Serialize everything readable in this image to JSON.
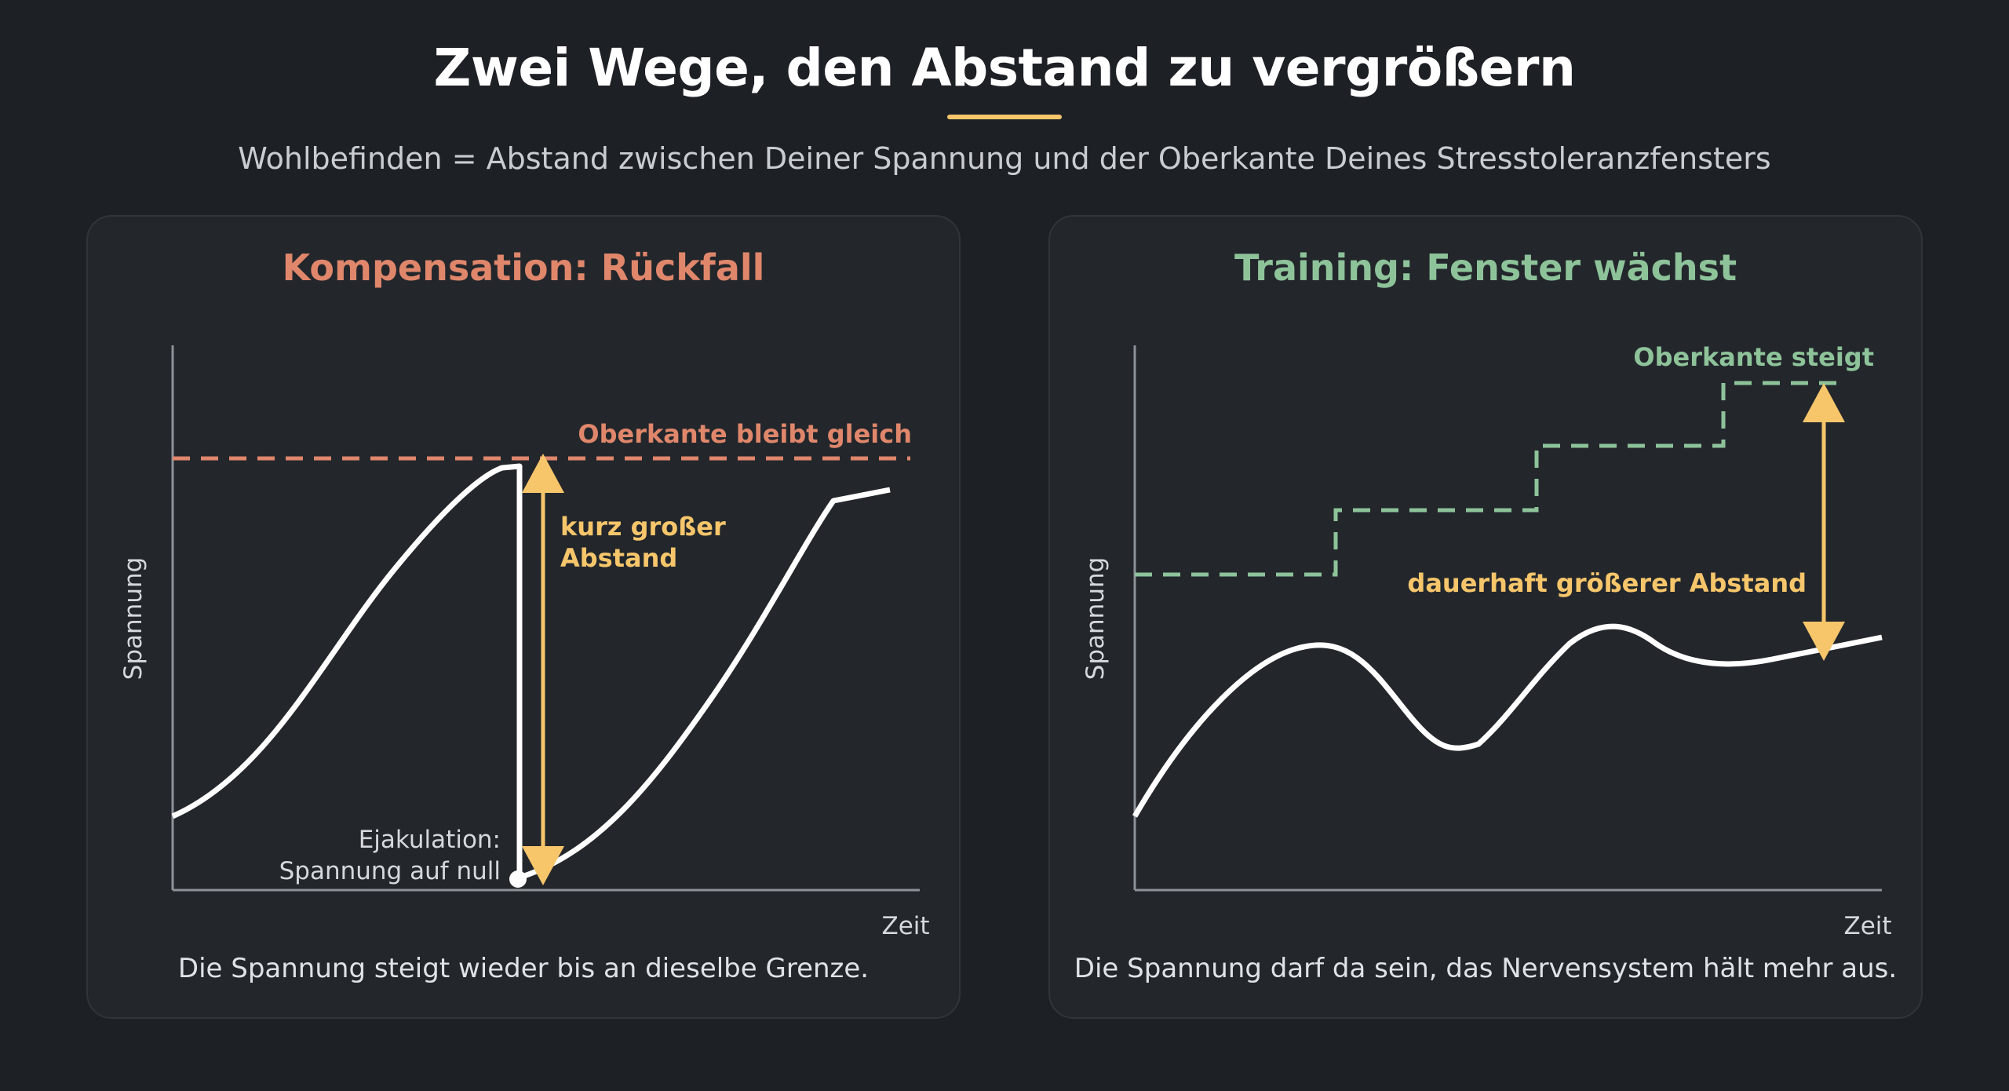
{
  "title": "Zwei Wege, den Abstand zu vergrößern",
  "subtitle": "Wohlbefinden = Abstand zwischen Deiner Spannung und der Oberkante Deines Stresstoleranzfensters",
  "colors": {
    "background": "#1d2025",
    "panel": "#23272c",
    "accent_yellow": "#f7c66b",
    "left_accent": "#e0876b",
    "right_accent": "#8ec39a",
    "curve": "#ffffff"
  },
  "left_panel": {
    "title": "Kompensation: Rückfall",
    "y_axis_label": "Spannung",
    "x_axis_label": "Zeit",
    "limit_label": "Oberkante bleibt gleich",
    "gap_label_line1": "kurz großer",
    "gap_label_line2": "Abstand",
    "event_label_line1": "Ejakulation:",
    "event_label_line2": "Spannung auf null",
    "caption": "Die Spannung steigt wieder bis an dieselbe Grenze."
  },
  "right_panel": {
    "title": "Training: Fenster wächst",
    "y_axis_label": "Spannung",
    "x_axis_label": "Zeit",
    "limit_label": "Oberkante steigt",
    "gap_label": "dauerhaft größerer Abstand",
    "caption": "Die Spannung darf da sein, das Nervensystem hält mehr aus."
  }
}
